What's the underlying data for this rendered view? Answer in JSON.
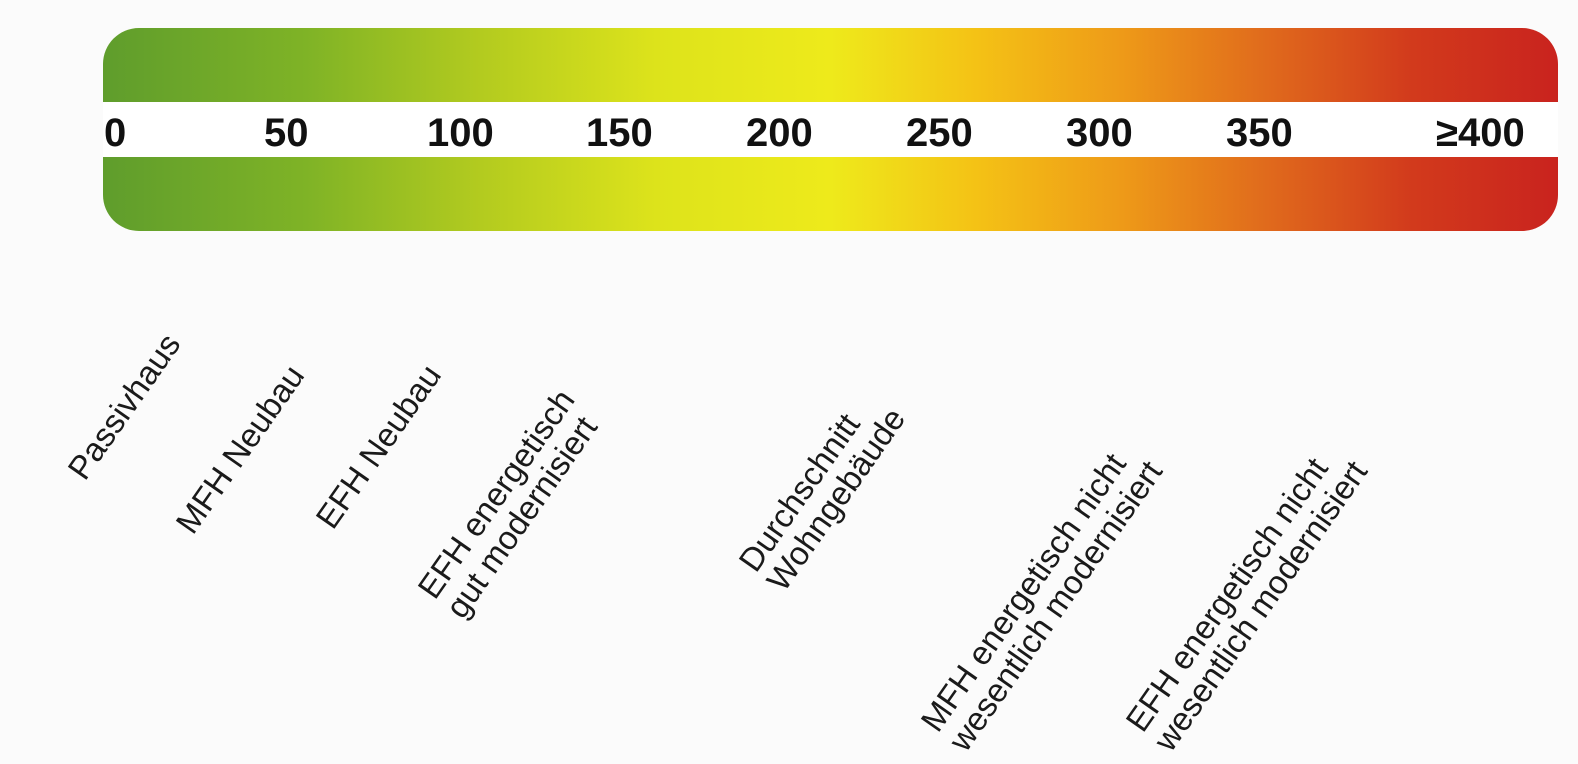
{
  "scale": {
    "ticks": [
      "0",
      "50",
      "100",
      "150",
      "200",
      "250",
      "300",
      "350",
      "≥400"
    ]
  },
  "categories": [
    {
      "lines": [
        "Passivhaus"
      ]
    },
    {
      "lines": [
        "MFH Neubau"
      ]
    },
    {
      "lines": [
        "EFH Neubau"
      ]
    },
    {
      "lines": [
        "EFH energetisch",
        "gut modernisiert"
      ]
    },
    {
      "lines": [
        "Durchschnitt",
        "Wohngebäude"
      ]
    },
    {
      "lines": [
        "MFH energetisch nicht",
        "wesentlich modernisiert"
      ]
    },
    {
      "lines": [
        "EFH energetisch nicht",
        "wesentlich modernisiert"
      ]
    }
  ],
  "colors": {
    "low": "#5f9d2c",
    "mid": "#eeea1b",
    "high": "#c9231e"
  }
}
